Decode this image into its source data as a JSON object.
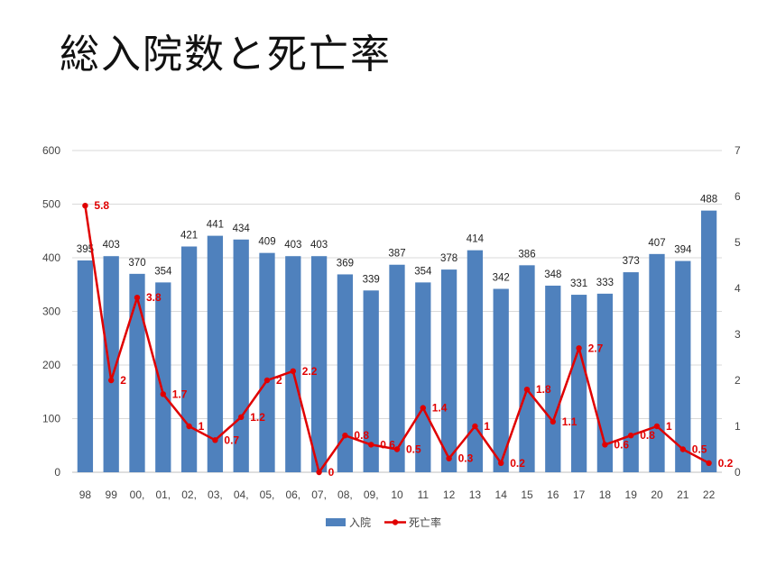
{
  "title": "総入院数と死亡率",
  "chart_data": {
    "type": "bar",
    "categories": [
      "98",
      "99",
      "00,",
      "01,",
      "02,",
      "03,",
      "04,",
      "05,",
      "06,",
      "07,",
      "08,",
      "09,",
      "10",
      "11",
      "12",
      "13",
      "14",
      "15",
      "16",
      "17",
      "18",
      "19",
      "20",
      "21",
      "22"
    ],
    "series": [
      {
        "name": "入院",
        "type": "bar",
        "axis": "left",
        "color": "#4f81bd",
        "values": [
          395,
          403,
          370,
          354,
          421,
          441,
          434,
          409,
          403,
          403,
          369,
          339,
          387,
          354,
          378,
          414,
          342,
          386,
          348,
          331,
          333,
          373,
          407,
          394,
          488
        ]
      },
      {
        "name": "死亡率",
        "type": "line",
        "axis": "right",
        "color": "#e00000",
        "values": [
          5.8,
          2,
          3.8,
          1.7,
          1,
          0.7,
          1.2,
          2,
          2.2,
          0,
          0.8,
          0.6,
          0.5,
          1.4,
          0.3,
          1,
          0.2,
          1.8,
          1.1,
          2.7,
          0.6,
          0.8,
          1,
          0.5,
          0.2
        ]
      }
    ],
    "ylim": [
      0,
      600
    ],
    "yticks": [
      0,
      100,
      200,
      300,
      400,
      500,
      600
    ],
    "y2lim": [
      0,
      7
    ],
    "y2ticks": [
      0,
      1,
      2,
      3,
      4,
      5,
      6,
      7
    ],
    "grid": true,
    "legend": "bottom-center"
  }
}
